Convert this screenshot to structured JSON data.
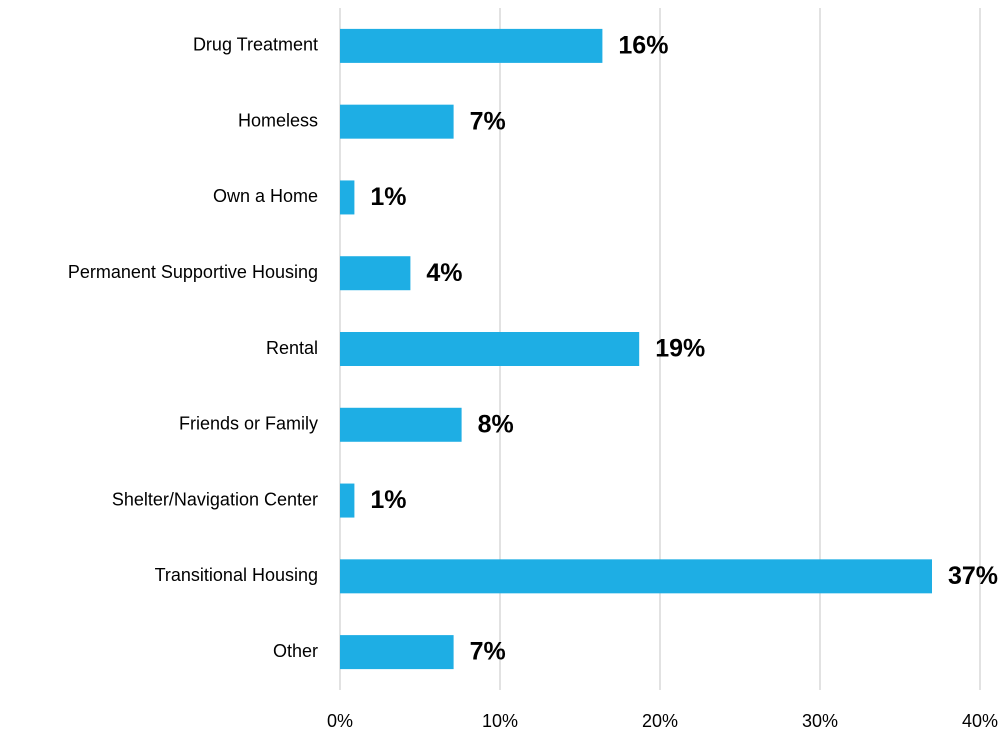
{
  "chart_data": {
    "type": "bar",
    "orientation": "horizontal",
    "categories": [
      "Drug Treatment",
      "Homeless",
      "Own a Home",
      "Permanent Supportive Housing",
      "Rental",
      "Friends or Family",
      "Shelter/Navigation Center",
      "Transitional Housing",
      "Other"
    ],
    "values": [
      16.4,
      7.1,
      0.9,
      4.4,
      18.7,
      7.6,
      0.9,
      37.0,
      7.1
    ],
    "value_labels": [
      "16%",
      "7%",
      "1%",
      "4%",
      "19%",
      "8%",
      "1%",
      "37%",
      "7%"
    ],
    "color": "#1eaee4",
    "xlim": [
      0,
      40
    ],
    "xticks": [
      {
        "value": 0,
        "label": "0%"
      },
      {
        "value": 10,
        "label": "10%"
      },
      {
        "value": 20,
        "label": "20%"
      },
      {
        "value": 30,
        "label": "30%"
      },
      {
        "value": 40,
        "label": "40%"
      }
    ],
    "grid": true
  }
}
